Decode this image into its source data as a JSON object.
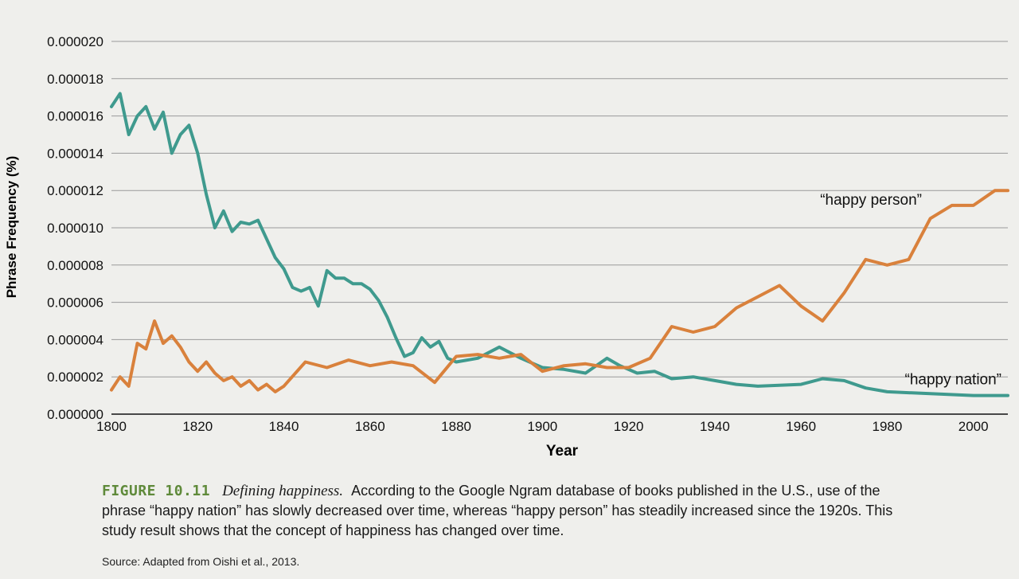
{
  "chart_data": {
    "type": "line",
    "title": "",
    "xlabel": "Year",
    "ylabel": "Phrase Frequency (%)",
    "xlim": [
      1800,
      2008
    ],
    "ylim": [
      0,
      2e-05
    ],
    "x_ticks": [
      "1800",
      "1820",
      "1840",
      "1860",
      "1880",
      "1900",
      "1920",
      "1940",
      "1960",
      "1980",
      "2000"
    ],
    "y_ticks": [
      "0.000000",
      "0.000002",
      "0.000004",
      "0.000006",
      "0.000008",
      "0.000010",
      "0.000012",
      "0.000014",
      "0.000016",
      "0.000018",
      "0.000020"
    ],
    "grid": true,
    "series": [
      {
        "name": "happy nation",
        "label": "“happy nation”",
        "color": "#3f9a8e",
        "x": [
          1800,
          1802,
          1804,
          1806,
          1808,
          1810,
          1812,
          1814,
          1816,
          1818,
          1820,
          1822,
          1824,
          1826,
          1828,
          1830,
          1832,
          1834,
          1836,
          1838,
          1840,
          1842,
          1844,
          1846,
          1848,
          1850,
          1852,
          1854,
          1856,
          1858,
          1860,
          1862,
          1864,
          1866,
          1868,
          1870,
          1872,
          1874,
          1876,
          1878,
          1880,
          1885,
          1890,
          1895,
          1900,
          1905,
          1910,
          1915,
          1918,
          1922,
          1926,
          1930,
          1935,
          1940,
          1945,
          1950,
          1960,
          1965,
          1970,
          1975,
          1980,
          1990,
          2000,
          2008
        ],
        "values": [
          1.65e-05,
          1.72e-05,
          1.5e-05,
          1.6e-05,
          1.65e-05,
          1.53e-05,
          1.62e-05,
          1.4e-05,
          1.5e-05,
          1.55e-05,
          1.4e-05,
          1.18e-05,
          1e-05,
          1.09e-05,
          9.8e-06,
          1.03e-05,
          1.02e-05,
          1.04e-05,
          9.4e-06,
          8.4e-06,
          7.8e-06,
          6.8e-06,
          6.6e-06,
          6.8e-06,
          5.8e-06,
          7.7e-06,
          7.3e-06,
          7.3e-06,
          7e-06,
          7e-06,
          6.7e-06,
          6.1e-06,
          5.2e-06,
          4.1e-06,
          3.1e-06,
          3.3e-06,
          4.1e-06,
          3.6e-06,
          3.9e-06,
          3e-06,
          2.8e-06,
          3e-06,
          3.6e-06,
          3e-06,
          2.5e-06,
          2.4e-06,
          2.2e-06,
          3e-06,
          2.6e-06,
          2.2e-06,
          2.3e-06,
          1.9e-06,
          2e-06,
          1.8e-06,
          1.6e-06,
          1.5e-06,
          1.6e-06,
          1.9e-06,
          1.8e-06,
          1.4e-06,
          1.2e-06,
          1.1e-06,
          1e-06,
          1e-06
        ]
      },
      {
        "name": "happy person",
        "label": "“happy person”",
        "color": "#d9813c",
        "x": [
          1800,
          1802,
          1804,
          1806,
          1808,
          1810,
          1812,
          1814,
          1816,
          1818,
          1820,
          1822,
          1824,
          1826,
          1828,
          1830,
          1832,
          1834,
          1836,
          1838,
          1840,
          1845,
          1850,
          1855,
          1860,
          1865,
          1870,
          1875,
          1880,
          1885,
          1890,
          1895,
          1900,
          1905,
          1910,
          1915,
          1920,
          1925,
          1930,
          1935,
          1940,
          1945,
          1950,
          1955,
          1960,
          1965,
          1970,
          1975,
          1980,
          1985,
          1990,
          1995,
          2000,
          2005,
          2008
        ],
        "values": [
          1.3e-06,
          2e-06,
          1.5e-06,
          3.8e-06,
          3.5e-06,
          5e-06,
          3.8e-06,
          4.2e-06,
          3.6e-06,
          2.8e-06,
          2.3e-06,
          2.8e-06,
          2.2e-06,
          1.8e-06,
          2e-06,
          1.5e-06,
          1.8e-06,
          1.3e-06,
          1.6e-06,
          1.2e-06,
          1.5e-06,
          2.8e-06,
          2.5e-06,
          2.9e-06,
          2.6e-06,
          2.8e-06,
          2.6e-06,
          1.7e-06,
          3.1e-06,
          3.2e-06,
          3e-06,
          3.2e-06,
          2.3e-06,
          2.6e-06,
          2.7e-06,
          2.5e-06,
          2.5e-06,
          3e-06,
          4.7e-06,
          4.4e-06,
          4.7e-06,
          5.7e-06,
          6.3e-06,
          6.9e-06,
          5.8e-06,
          5e-06,
          6.5e-06,
          8.3e-06,
          8e-06,
          8.3e-06,
          1.05e-05,
          1.12e-05,
          1.12e-05,
          1.2e-05,
          1.2e-05
        ]
      }
    ]
  },
  "caption": {
    "figure_label": "FIGURE 10.11",
    "title": "Defining happiness.",
    "text": "According to the Google Ngram database of books published in the U.S., use of the phrase “happy nation” has slowly decreased over time, whereas “happy person” has steadily increased since the 1920s. This study result shows that the concept of happiness has changed over time."
  },
  "source": "Source: Adapted from Oishi et al., 2013."
}
